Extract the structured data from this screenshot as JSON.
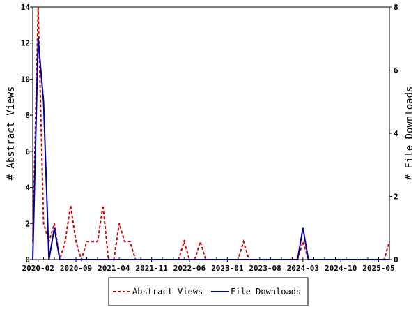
{
  "chart_data": {
    "type": "line",
    "title": "",
    "xlabel": "",
    "x_ticks": [
      "2020-02",
      "2020-09",
      "2021-04",
      "2021-11",
      "2022-06",
      "2023-01",
      "2023-08",
      "2024-03",
      "2024-10",
      "2025-05"
    ],
    "y_left": {
      "label": "# Abstract Views",
      "range": [
        0,
        14
      ],
      "ticks": [
        0,
        2,
        4,
        6,
        8,
        10,
        12,
        14
      ]
    },
    "y_right": {
      "label": "# File Downloads",
      "range": [
        0,
        8
      ],
      "ticks": [
        0,
        2,
        4,
        6,
        8
      ]
    },
    "x": [
      "2020-01",
      "2020-02",
      "2020-03",
      "2020-04",
      "2020-05",
      "2020-06",
      "2020-07",
      "2020-08",
      "2020-09",
      "2020-10",
      "2020-11",
      "2020-12",
      "2021-01",
      "2021-02",
      "2021-03",
      "2021-04",
      "2021-05",
      "2021-06",
      "2021-07",
      "2021-08",
      "2021-09",
      "2021-10",
      "2021-11",
      "2021-12",
      "2022-01",
      "2022-02",
      "2022-03",
      "2022-04",
      "2022-05",
      "2022-06",
      "2022-07",
      "2022-08",
      "2022-09",
      "2022-10",
      "2022-11",
      "2022-12",
      "2023-01",
      "2023-02",
      "2023-03",
      "2023-04",
      "2023-05",
      "2023-06",
      "2023-07",
      "2023-08",
      "2023-09",
      "2023-10",
      "2023-11",
      "2023-12",
      "2024-01",
      "2024-02",
      "2024-03",
      "2024-04",
      "2024-05",
      "2024-06",
      "2024-07",
      "2024-08",
      "2024-09",
      "2024-10",
      "2024-11",
      "2024-12",
      "2025-01",
      "2025-02",
      "2025-03",
      "2025-04",
      "2025-05",
      "2025-06",
      "2025-07"
    ],
    "series": [
      {
        "name": "Abstract Views",
        "axis": "left",
        "color": "#cc0000",
        "dash": true,
        "values": [
          1,
          14,
          2,
          1,
          2,
          0,
          1,
          3,
          1,
          0,
          1,
          1,
          1,
          3,
          0,
          0,
          2,
          1,
          1,
          0,
          0,
          0,
          0,
          0,
          0,
          0,
          0,
          0,
          1,
          0,
          0,
          1,
          0,
          0,
          0,
          0,
          0,
          0,
          0,
          1,
          0,
          0,
          0,
          0,
          0,
          0,
          0,
          0,
          0,
          0,
          1,
          0,
          0,
          0,
          0,
          0,
          0,
          0,
          0,
          0,
          0,
          0,
          0,
          0,
          0,
          0,
          1
        ]
      },
      {
        "name": "File Downloads",
        "axis": "right",
        "color": "#000099",
        "dash": false,
        "values": [
          0,
          7,
          5,
          0,
          1,
          0,
          0,
          0,
          0,
          0,
          0,
          0,
          0,
          0,
          0,
          0,
          0,
          0,
          0,
          0,
          0,
          0,
          0,
          0,
          0,
          0,
          0,
          0,
          0,
          0,
          0,
          0,
          0,
          0,
          0,
          0,
          0,
          0,
          0,
          0,
          0,
          0,
          0,
          0,
          0,
          0,
          0,
          0,
          0,
          0,
          1,
          0,
          0,
          0,
          0,
          0,
          0,
          0,
          0,
          0,
          0,
          0,
          0,
          0,
          0,
          0,
          0
        ]
      }
    ],
    "legend": {
      "position": "bottom"
    },
    "grid": false
  }
}
